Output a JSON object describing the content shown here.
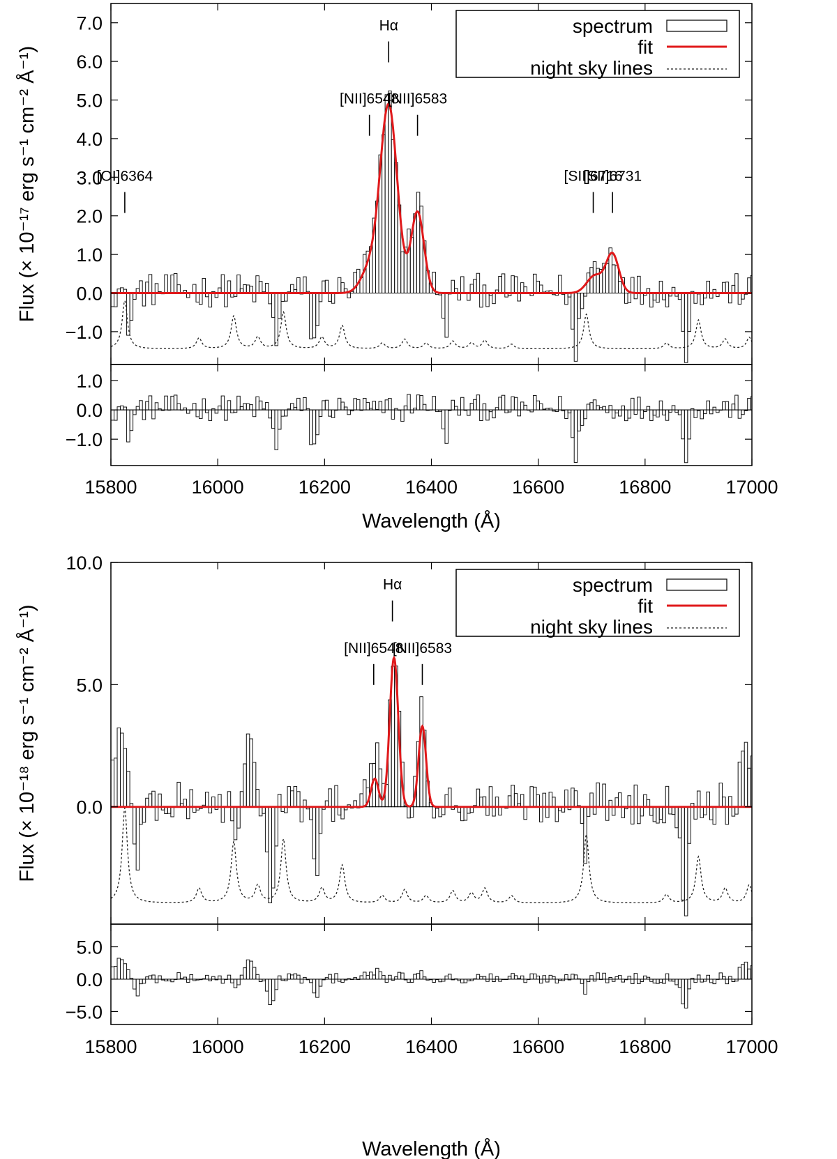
{
  "chart_data": [
    {
      "type": "bar",
      "ylabel": "Flux (× 10⁻¹⁷ erg s⁻¹ cm⁻² Å⁻¹)",
      "xlabel": "Wavelength (Å)",
      "xlim": [
        15800,
        17000
      ],
      "ylim": [
        -1.85,
        7.5
      ],
      "xticks": [
        15800,
        16000,
        16200,
        16400,
        16600,
        16800,
        17000
      ],
      "xtick_labels": [
        "15800",
        "16000",
        "16200",
        "16400",
        "16600",
        "16800",
        "17000"
      ],
      "yticks": [
        -1.0,
        0.0,
        1.0,
        2.0,
        3.0,
        4.0,
        5.0,
        6.0,
        7.0
      ],
      "ytick_labels": [
        "−1.0",
        "0.0",
        "1.0",
        "2.0",
        "3.0",
        "4.0",
        "5.0",
        "6.0",
        "7.0"
      ],
      "legend": {
        "position": "top-right",
        "entries": [
          "spectrum",
          "fit",
          "night sky lines"
        ]
      },
      "lines": [
        {
          "label": "[OI]6364",
          "x": 15826,
          "y": 2.4
        },
        {
          "label": "Hα",
          "x": 16320,
          "y": 6.3
        },
        {
          "label": "[NII]6548",
          "x": 16284,
          "y": 4.4
        },
        {
          "label": "[NII]6583",
          "x": 16374,
          "y": 4.4
        },
        {
          "label": "[SII]6716",
          "x": 16703,
          "y": 2.4
        },
        {
          "label": "[SII]6731",
          "x": 16739,
          "y": 2.4
        }
      ],
      "fit": {
        "color": "#e0191b",
        "components": [
          {
            "center": 16320,
            "amp": 4.85,
            "sigma": 16
          },
          {
            "center": 16374,
            "amp": 2.1,
            "sigma": 12
          },
          {
            "center": 16284,
            "amp": 0.6,
            "sigma": 16
          },
          {
            "center": 16706,
            "amp": 0.45,
            "sigma": 15
          },
          {
            "center": 16739,
            "amp": 1.0,
            "sigma": 12
          }
        ]
      },
      "spectrum": {
        "bin_width": 5.9,
        "features": [
          {
            "center": 16320,
            "amp": 4.9,
            "sigma": 15
          },
          {
            "center": 16374,
            "amp": 2.3,
            "sigma": 13
          },
          {
            "center": 16284,
            "amp": 0.7,
            "sigma": 15
          },
          {
            "center": 16739,
            "amp": 1.0,
            "sigma": 12
          },
          {
            "center": 16706,
            "amp": 0.6,
            "sigma": 12
          }
        ],
        "dips": [
          {
            "center": 15835,
            "amp": -0.9
          },
          {
            "center": 16110,
            "amp": -1.5
          },
          {
            "center": 16180,
            "amp": -1.4
          },
          {
            "center": 16670,
            "amp": -1.8
          },
          {
            "center": 16875,
            "amp": -1.6
          },
          {
            "center": 16425,
            "amp": -1.0
          }
        ],
        "noise": 0.55
      },
      "sky": {
        "baseline": -1.45,
        "peaks": [
          {
            "x": 15826,
            "h": 1.25
          },
          {
            "x": 15965,
            "h": 0.28
          },
          {
            "x": 16030,
            "h": 0.85
          },
          {
            "x": 16075,
            "h": 0.3
          },
          {
            "x": 16123,
            "h": 0.95
          },
          {
            "x": 16195,
            "h": 0.3
          },
          {
            "x": 16233,
            "h": 0.6
          },
          {
            "x": 16308,
            "h": 0.15
          },
          {
            "x": 16350,
            "h": 0.25
          },
          {
            "x": 16390,
            "h": 0.15
          },
          {
            "x": 16440,
            "h": 0.2
          },
          {
            "x": 16475,
            "h": 0.15
          },
          {
            "x": 16500,
            "h": 0.22
          },
          {
            "x": 16550,
            "h": 0.12
          },
          {
            "x": 16690,
            "h": 0.9
          },
          {
            "x": 16840,
            "h": 0.15
          },
          {
            "x": 16900,
            "h": 0.75
          },
          {
            "x": 16950,
            "h": 0.25
          },
          {
            "x": 16995,
            "h": 0.3
          }
        ]
      },
      "residual": {
        "ylim": [
          -1.9,
          1.55
        ],
        "yticks": [
          -1.0,
          0.0,
          1.0
        ],
        "ytick_labels": [
          "−1.0",
          "0.0",
          "1.0"
        ]
      }
    },
    {
      "type": "bar",
      "ylabel": "Flux (× 10⁻¹⁸ erg s⁻¹ cm⁻² Å⁻¹)",
      "xlabel": "Wavelength (Å)",
      "xlim": [
        15800,
        17000
      ],
      "ylim": [
        -4.8,
        10.0
      ],
      "xticks": [
        15800,
        16000,
        16200,
        16400,
        16600,
        16800,
        17000
      ],
      "xtick_labels": [
        "15800",
        "16000",
        "16200",
        "16400",
        "16600",
        "16800",
        "17000"
      ],
      "yticks": [
        0.0,
        5.0,
        10.0
      ],
      "ytick_labels": [
        "0.0",
        "5.0",
        "10.0"
      ],
      "legend": {
        "position": "top-right",
        "entries": [
          "spectrum",
          "fit",
          "night sky lines"
        ]
      },
      "lines": [
        {
          "label": "Hα",
          "x": 16327,
          "y": 8.1
        },
        {
          "label": "[NII]6548",
          "x": 16292,
          "y": 5.5
        },
        {
          "label": "[NII]6583",
          "x": 16383,
          "y": 5.5
        }
      ],
      "fit": {
        "color": "#e0191b",
        "components": [
          {
            "center": 16330,
            "amp": 6.1,
            "sigma": 8
          },
          {
            "center": 16383,
            "amp": 3.3,
            "sigma": 7
          },
          {
            "center": 16294,
            "amp": 1.15,
            "sigma": 7
          }
        ]
      },
      "spectrum": {
        "bin_width": 5.9,
        "features": [
          {
            "center": 16330,
            "amp": 6.2,
            "sigma": 8
          },
          {
            "center": 16383,
            "amp": 3.6,
            "sigma": 8
          },
          {
            "center": 16294,
            "amp": 2.0,
            "sigma": 9
          },
          {
            "center": 15815,
            "amp": 2.8,
            "sigma": 12
          },
          {
            "center": 16060,
            "amp": 3.8,
            "sigma": 6
          },
          {
            "center": 16680,
            "amp": 2.2,
            "sigma": 12
          },
          {
            "center": 16990,
            "amp": 2.0,
            "sigma": 10
          }
        ],
        "dips": [
          {
            "center": 16100,
            "amp": -4.8
          },
          {
            "center": 16185,
            "amp": -3.5
          },
          {
            "center": 16685,
            "amp": -4.2
          },
          {
            "center": 16875,
            "amp": -4.2
          },
          {
            "center": 15850,
            "amp": -2.2
          },
          {
            "center": 16035,
            "amp": -1.8
          }
        ],
        "noise": 1.1
      },
      "sky": {
        "baseline": -3.95,
        "peaks": [
          {
            "x": 15826,
            "h": 3.9
          },
          {
            "x": 15965,
            "h": 0.6
          },
          {
            "x": 16030,
            "h": 2.5
          },
          {
            "x": 16075,
            "h": 0.7
          },
          {
            "x": 16123,
            "h": 2.6
          },
          {
            "x": 16195,
            "h": 0.6
          },
          {
            "x": 16233,
            "h": 1.55
          },
          {
            "x": 16308,
            "h": 0.3
          },
          {
            "x": 16350,
            "h": 0.55
          },
          {
            "x": 16390,
            "h": 0.3
          },
          {
            "x": 16440,
            "h": 0.5
          },
          {
            "x": 16475,
            "h": 0.4
          },
          {
            "x": 16500,
            "h": 0.6
          },
          {
            "x": 16550,
            "h": 0.3
          },
          {
            "x": 16690,
            "h": 2.8
          },
          {
            "x": 16840,
            "h": 0.35
          },
          {
            "x": 16900,
            "h": 1.9
          },
          {
            "x": 16950,
            "h": 0.6
          },
          {
            "x": 16995,
            "h": 0.75
          }
        ]
      },
      "residual": {
        "ylim": [
          -7.0,
          8.5
        ],
        "yticks": [
          -5.0,
          0.0,
          5.0
        ],
        "ytick_labels": [
          "−5.0",
          "0.0",
          "5.0"
        ]
      }
    }
  ]
}
